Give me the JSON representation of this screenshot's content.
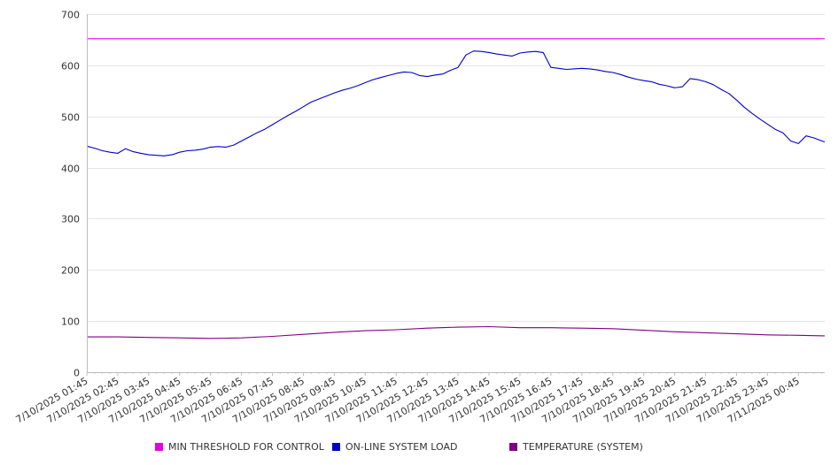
{
  "chart_data": {
    "type": "line",
    "title": "",
    "xlabel": "",
    "ylabel": "",
    "ylim": [
      0,
      700
    ],
    "yticks": [
      0,
      100,
      200,
      300,
      400,
      500,
      600,
      700
    ],
    "grid": true,
    "legend_position": "bottom",
    "x_tick_labels": [
      "7/10/2025 01:45",
      "7/10/2025 02:45",
      "7/10/2025 03:45",
      "7/10/2025 04:45",
      "7/10/2025 05:45",
      "7/10/2025 06:45",
      "7/10/2025 07:45",
      "7/10/2025 08:45",
      "7/10/2025 09:45",
      "7/10/2025 10:45",
      "7/10/2025 11:45",
      "7/10/2025 12:45",
      "7/10/2025 13:45",
      "7/10/2025 14:45",
      "7/10/2025 15:45",
      "7/10/2025 16:45",
      "7/10/2025 17:45",
      "7/10/2025 18:45",
      "7/10/2025 19:45",
      "7/10/2025 20:45",
      "7/10/2025 21:45",
      "7/10/2025 22:45",
      "7/10/2025 23:45",
      "7/11/2025 00:45"
    ],
    "x_hours": [
      1.75,
      2.75,
      3.75,
      4.75,
      5.75,
      6.75,
      7.75,
      8.75,
      9.75,
      10.75,
      11.75,
      12.75,
      13.75,
      14.75,
      15.75,
      16.75,
      17.75,
      18.75,
      19.75,
      20.75,
      21.75,
      22.75,
      23.75,
      24.75
    ],
    "series": [
      {
        "name": "MIN THRESHOLD FOR CONTROL",
        "color": "#e400e4",
        "x": [
          1.75,
          25.6
        ],
        "values": [
          652,
          652
        ]
      },
      {
        "name": "ON-LINE SYSTEM LOAD",
        "color": "#0000c8",
        "x": [
          1.75,
          2.0,
          2.25,
          2.5,
          2.75,
          3.0,
          3.25,
          3.5,
          3.75,
          4.0,
          4.25,
          4.5,
          4.75,
          5.0,
          5.25,
          5.5,
          5.75,
          6.0,
          6.25,
          6.5,
          6.75,
          7.0,
          7.25,
          7.5,
          7.75,
          8.0,
          8.25,
          8.5,
          8.75,
          9.0,
          9.25,
          9.5,
          9.75,
          10.0,
          10.25,
          10.5,
          10.75,
          11.0,
          11.25,
          11.5,
          11.75,
          12.0,
          12.25,
          12.5,
          12.75,
          13.0,
          13.25,
          13.5,
          13.75,
          14.0,
          14.25,
          14.5,
          14.75,
          15.0,
          15.25,
          15.5,
          15.75,
          16.0,
          16.25,
          16.5,
          16.75,
          17.0,
          17.25,
          17.5,
          17.75,
          18.0,
          18.25,
          18.5,
          18.75,
          19.0,
          19.25,
          19.5,
          19.75,
          20.0,
          20.25,
          20.5,
          20.75,
          21.0,
          21.25,
          21.5,
          21.75,
          22.0,
          22.25,
          22.5,
          22.75,
          23.0,
          23.25,
          23.5,
          23.75,
          24.0,
          24.25,
          24.5,
          24.75,
          25.0,
          25.25,
          25.6
        ],
        "values": [
          442,
          438,
          433,
          430,
          428,
          437,
          431,
          428,
          425,
          424,
          423,
          425,
          430,
          433,
          434,
          436,
          440,
          441,
          440,
          444,
          452,
          460,
          468,
          475,
          484,
          493,
          502,
          510,
          519,
          528,
          534,
          540,
          546,
          551,
          555,
          560,
          566,
          572,
          576,
          580,
          584,
          587,
          586,
          580,
          578,
          581,
          583,
          590,
          596,
          620,
          628,
          627,
          625,
          622,
          620,
          618,
          624,
          626,
          627,
          625,
          596,
          594,
          592,
          593,
          594,
          593,
          591,
          588,
          586,
          582,
          577,
          573,
          570,
          568,
          563,
          560,
          556,
          558,
          574,
          572,
          568,
          562,
          553,
          545,
          532,
          518,
          506,
          495,
          485,
          475,
          468,
          452,
          447,
          462,
          458,
          450
        ]
      },
      {
        "name": "TEMPERATURE (SYSTEM)",
        "color": "#800080",
        "x": [
          1.75,
          2.75,
          3.75,
          4.75,
          5.75,
          6.75,
          7.75,
          8.75,
          9.75,
          10.75,
          11.75,
          12.75,
          13.75,
          14.75,
          15.75,
          16.75,
          17.75,
          18.75,
          19.75,
          20.75,
          21.75,
          22.75,
          23.75,
          24.75,
          25.6
        ],
        "values": [
          69,
          69,
          68,
          67,
          66,
          67,
          70,
          74,
          78,
          81,
          83,
          86,
          88,
          89,
          87,
          87,
          86,
          85,
          82,
          79,
          77,
          75,
          73,
          72,
          71
        ]
      }
    ]
  }
}
